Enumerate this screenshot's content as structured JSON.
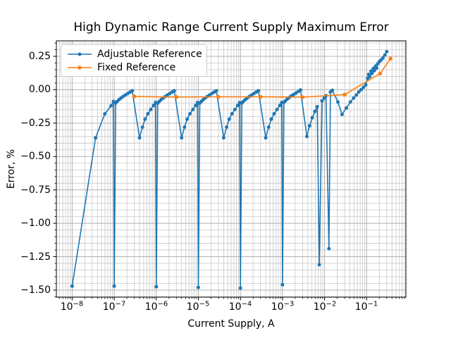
{
  "chart_data": {
    "type": "line",
    "title": "High Dynamic Range Current Supply Maximum Error",
    "xlabel": "Current Supply, A",
    "ylabel": "Error, %",
    "x_scale": "log",
    "xlim_log10": [
      -8.375,
      -0.067
    ],
    "ylim": [
      -1.553,
      0.366
    ],
    "x_major_tick_exponents": [
      -8,
      -7,
      -6,
      -5,
      -4,
      -3,
      -2,
      -1
    ],
    "y_major_ticks": [
      0.25,
      0.0,
      -0.25,
      -0.5,
      -0.75,
      -1.0,
      -1.25,
      -1.5
    ],
    "y_minor_step": 0.05,
    "grid": "both",
    "grid_major_color": "#b0b0b0",
    "grid_minor_color": "#c8c8c8",
    "spine_color": "#000000",
    "legend_position": "upper left",
    "series": [
      {
        "name": "Adjustable Reference",
        "color": "#1f77b4",
        "marker_radius": 2.5,
        "points": [
          [
            1e-08,
            -1.47
          ],
          [
            3.6e-08,
            -0.36
          ],
          [
            6e-08,
            -0.18
          ],
          [
            8.4e-08,
            -0.12
          ],
          [
            9.6e-08,
            -0.088
          ],
          [
            1e-07,
            -1.47
          ],
          [
            1.08e-07,
            -0.1
          ],
          [
            1.17e-07,
            -0.088
          ],
          [
            1.3e-07,
            -0.074
          ],
          [
            1.45e-07,
            -0.062
          ],
          [
            1.62e-07,
            -0.051
          ],
          [
            1.83e-07,
            -0.04
          ],
          [
            2.08e-07,
            -0.029
          ],
          [
            2.37e-07,
            -0.018
          ],
          [
            2.67e-07,
            -0.008
          ],
          [
            4e-07,
            -0.36
          ],
          [
            4.7e-07,
            -0.28
          ],
          [
            5.4e-07,
            -0.22
          ],
          [
            6.3e-07,
            -0.18
          ],
          [
            7.4e-07,
            -0.148
          ],
          [
            8.6e-07,
            -0.118
          ],
          [
            9.6e-07,
            -0.096
          ],
          [
            1e-06,
            -1.475
          ],
          [
            1.08e-06,
            -0.1
          ],
          [
            1.17e-06,
            -0.088
          ],
          [
            1.3e-06,
            -0.074
          ],
          [
            1.45e-06,
            -0.062
          ],
          [
            1.62e-06,
            -0.051
          ],
          [
            1.83e-06,
            -0.04
          ],
          [
            2.08e-06,
            -0.029
          ],
          [
            2.37e-06,
            -0.018
          ],
          [
            2.67e-06,
            -0.008
          ],
          [
            4e-06,
            -0.36
          ],
          [
            4.7e-06,
            -0.28
          ],
          [
            5.4e-06,
            -0.22
          ],
          [
            6.3e-06,
            -0.18
          ],
          [
            7.4e-06,
            -0.148
          ],
          [
            8.6e-06,
            -0.118
          ],
          [
            9.6e-06,
            -0.096
          ],
          [
            1e-05,
            -1.48
          ],
          [
            1.08e-05,
            -0.1
          ],
          [
            1.17e-05,
            -0.088
          ],
          [
            1.3e-05,
            -0.074
          ],
          [
            1.45e-05,
            -0.062
          ],
          [
            1.62e-05,
            -0.051
          ],
          [
            1.83e-05,
            -0.04
          ],
          [
            2.08e-05,
            -0.029
          ],
          [
            2.37e-05,
            -0.018
          ],
          [
            2.67e-05,
            -0.008
          ],
          [
            4e-05,
            -0.36
          ],
          [
            4.7e-05,
            -0.28
          ],
          [
            5.4e-05,
            -0.22
          ],
          [
            6.3e-05,
            -0.18
          ],
          [
            7.4e-05,
            -0.148
          ],
          [
            8.6e-05,
            -0.118
          ],
          [
            9.6e-05,
            -0.096
          ],
          [
            0.0001,
            -1.485
          ],
          [
            0.000108,
            -0.1
          ],
          [
            0.000117,
            -0.088
          ],
          [
            0.00013,
            -0.074
          ],
          [
            0.000145,
            -0.062
          ],
          [
            0.000162,
            -0.051
          ],
          [
            0.000183,
            -0.04
          ],
          [
            0.000208,
            -0.029
          ],
          [
            0.000237,
            -0.018
          ],
          [
            0.000267,
            -0.008
          ],
          [
            0.0004,
            -0.36
          ],
          [
            0.00047,
            -0.28
          ],
          [
            0.00054,
            -0.22
          ],
          [
            0.00063,
            -0.18
          ],
          [
            0.00074,
            -0.148
          ],
          [
            0.00086,
            -0.118
          ],
          [
            0.00096,
            -0.096
          ],
          [
            0.001,
            -1.46
          ],
          [
            0.00108,
            -0.095
          ],
          [
            0.00117,
            -0.083
          ],
          [
            0.0013,
            -0.07
          ],
          [
            0.00145,
            -0.058
          ],
          [
            0.00162,
            -0.047
          ],
          [
            0.00183,
            -0.036
          ],
          [
            0.00208,
            -0.025
          ],
          [
            0.00237,
            -0.013
          ],
          [
            0.00267,
            -0.002
          ],
          [
            0.0038,
            -0.35
          ],
          [
            0.0044,
            -0.27
          ],
          [
            0.0051,
            -0.21
          ],
          [
            0.0059,
            -0.162
          ],
          [
            0.0067,
            -0.127
          ],
          [
            0.0075,
            -1.31
          ],
          [
            0.0087,
            -0.083
          ],
          [
            0.0098,
            -0.062
          ],
          [
            0.0108,
            -0.045
          ],
          [
            0.0127,
            -1.19
          ],
          [
            0.0138,
            -0.017
          ],
          [
            0.0153,
            -0.004
          ],
          [
            0.0207,
            -0.092
          ],
          [
            0.026,
            -0.185
          ],
          [
            0.033,
            -0.136
          ],
          [
            0.041,
            -0.092
          ],
          [
            0.049,
            -0.062
          ],
          [
            0.057,
            -0.04
          ],
          [
            0.065,
            -0.017
          ],
          [
            0.074,
            0.0
          ],
          [
            0.084,
            0.018
          ],
          [
            0.095,
            0.036
          ],
          [
            0.105,
            0.085
          ],
          [
            0.112,
            0.115
          ],
          [
            0.118,
            0.098
          ],
          [
            0.127,
            0.14
          ],
          [
            0.134,
            0.122
          ],
          [
            0.144,
            0.16
          ],
          [
            0.152,
            0.142
          ],
          [
            0.163,
            0.178
          ],
          [
            0.172,
            0.162
          ],
          [
            0.185,
            0.195
          ],
          [
            0.2,
            0.21
          ],
          [
            0.22,
            0.222
          ],
          [
            0.245,
            0.238
          ],
          [
            0.27,
            0.26
          ],
          [
            0.3,
            0.285
          ]
        ]
      },
      {
        "name": "Fixed Reference",
        "color": "#ff7f0e",
        "marker_radius": 2.8,
        "points": [
          [
            3e-07,
            -0.05
          ],
          [
            3e-06,
            -0.055
          ],
          [
            3e-05,
            -0.053
          ],
          [
            0.0003,
            -0.053
          ],
          [
            0.003,
            -0.056
          ],
          [
            0.03,
            -0.036
          ],
          [
            0.21,
            0.122
          ],
          [
            0.37,
            0.233
          ]
        ]
      }
    ]
  }
}
